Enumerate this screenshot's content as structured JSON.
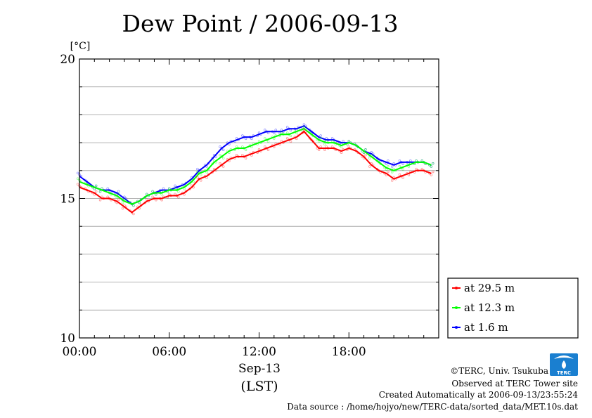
{
  "chart_data": {
    "type": "line",
    "title": "Dew Point / 2006-09-13",
    "ylabel": "[°C]",
    "ylim": [
      10,
      20
    ],
    "yticks": [
      10,
      15,
      20
    ],
    "xlim": [
      0,
      24
    ],
    "xticks": [
      {
        "hour": 0,
        "label": "00:00"
      },
      {
        "hour": 6,
        "label": "06:00"
      },
      {
        "hour": 12,
        "label": "12:00"
      },
      {
        "hour": 18,
        "label": "18:00"
      }
    ],
    "xlabel_date": "Sep-13",
    "xlabel_unit": "(LST)",
    "legend_position": "right",
    "series": [
      {
        "name": "at 29.5 m",
        "color": "#ff0000",
        "x": [
          0,
          0.5,
          1,
          1.5,
          2,
          2.5,
          3,
          3.5,
          4,
          4.5,
          5,
          5.5,
          6,
          6.5,
          7,
          7.5,
          8,
          8.5,
          9,
          9.5,
          10,
          10.5,
          11,
          11.5,
          12,
          12.5,
          13,
          13.5,
          14,
          14.5,
          15,
          15.5,
          16,
          16.5,
          17,
          17.5,
          18,
          18.5,
          19,
          19.5,
          20,
          20.5,
          21,
          21.5,
          22,
          22.5,
          23,
          23.5
        ],
        "y": [
          15.4,
          15.3,
          15.2,
          15.0,
          15.0,
          14.9,
          14.7,
          14.5,
          14.7,
          14.9,
          15.0,
          15.0,
          15.1,
          15.1,
          15.2,
          15.4,
          15.7,
          15.8,
          16.0,
          16.2,
          16.4,
          16.5,
          16.5,
          16.6,
          16.7,
          16.8,
          16.9,
          17.0,
          17.1,
          17.2,
          17.4,
          17.1,
          16.8,
          16.8,
          16.8,
          16.7,
          16.8,
          16.7,
          16.5,
          16.2,
          16.0,
          15.9,
          15.7,
          15.8,
          15.9,
          16.0,
          16.0,
          15.9
        ]
      },
      {
        "name": "at 12.3 m",
        "color": "#00ff00",
        "x": [
          0,
          0.5,
          1,
          1.5,
          2,
          2.5,
          3,
          3.5,
          4,
          4.5,
          5,
          5.5,
          6,
          6.5,
          7,
          7.5,
          8,
          8.5,
          9,
          9.5,
          10,
          10.5,
          11,
          11.5,
          12,
          12.5,
          13,
          13.5,
          14,
          14.5,
          15,
          15.5,
          16,
          16.5,
          17,
          17.5,
          18,
          18.5,
          19,
          19.5,
          20,
          20.5,
          21,
          21.5,
          22,
          22.5,
          23,
          23.5
        ],
        "y": [
          15.6,
          15.5,
          15.4,
          15.3,
          15.2,
          15.1,
          14.9,
          14.8,
          14.9,
          15.1,
          15.2,
          15.2,
          15.3,
          15.3,
          15.4,
          15.6,
          15.9,
          16.0,
          16.3,
          16.5,
          16.7,
          16.8,
          16.8,
          16.9,
          17.0,
          17.1,
          17.2,
          17.3,
          17.3,
          17.4,
          17.5,
          17.3,
          17.1,
          17.0,
          17.0,
          16.9,
          17.0,
          16.9,
          16.7,
          16.5,
          16.3,
          16.1,
          16.0,
          16.1,
          16.2,
          16.3,
          16.3,
          16.2
        ]
      },
      {
        "name": "at 1.6 m",
        "color": "#0000ff",
        "x": [
          0,
          0.5,
          1,
          1.5,
          2,
          2.5,
          3,
          3.5,
          4,
          4.5,
          5,
          5.5,
          6,
          6.5,
          7,
          7.5,
          8,
          8.5,
          9,
          9.5,
          10,
          10.5,
          11,
          11.5,
          12,
          12.5,
          13,
          13.5,
          14,
          14.5,
          15,
          15.5,
          16,
          16.5,
          17,
          17.5,
          18,
          18.5,
          19,
          19.5,
          20,
          20.5,
          21,
          21.5,
          22,
          22.5,
          23,
          23.5
        ],
        "y": [
          15.8,
          15.6,
          15.4,
          15.3,
          15.3,
          15.2,
          15.0,
          14.8,
          14.9,
          15.1,
          15.2,
          15.3,
          15.3,
          15.4,
          15.5,
          15.7,
          16.0,
          16.2,
          16.5,
          16.8,
          17.0,
          17.1,
          17.2,
          17.2,
          17.3,
          17.4,
          17.4,
          17.4,
          17.5,
          17.5,
          17.6,
          17.4,
          17.2,
          17.1,
          17.1,
          17.0,
          17.0,
          16.9,
          16.7,
          16.6,
          16.4,
          16.3,
          16.2,
          16.3,
          16.3,
          16.3,
          16.3,
          16.2
        ]
      }
    ]
  },
  "footer": {
    "copyright": "©TERC, Univ. Tsukuba",
    "site": "Observed at TERC Tower site",
    "created": "Created Automatically at 2006-09-13/23:55:24",
    "source": "Data source : /home/hojyo/new/TERC-data/sorted_data/MET.10s.dat"
  },
  "logo": {
    "text": "TERC",
    "color": "#1a7fd0"
  }
}
